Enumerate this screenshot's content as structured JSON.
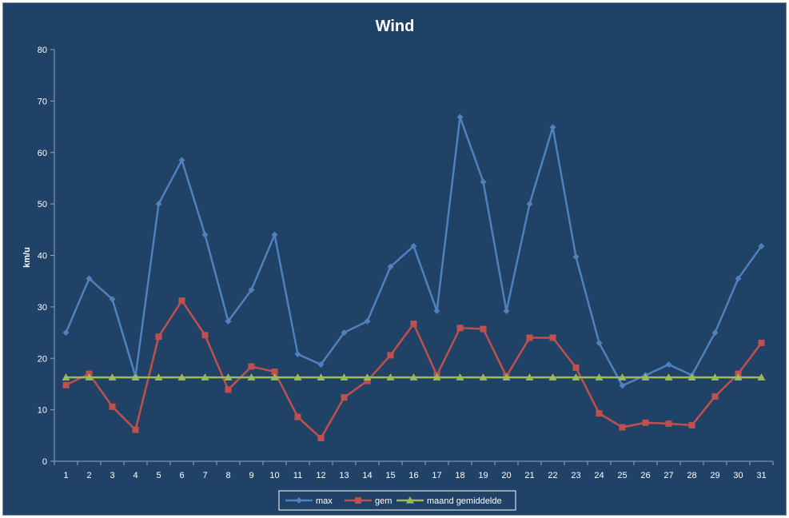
{
  "chart_data": {
    "type": "line",
    "title": "Wind",
    "xlabel": "",
    "ylabel": "km/u",
    "ylim": [
      0,
      80
    ],
    "yticks": [
      0,
      10,
      20,
      30,
      40,
      50,
      60,
      70,
      80
    ],
    "categories": [
      "1",
      "2",
      "3",
      "4",
      "5",
      "6",
      "7",
      "8",
      "9",
      "10",
      "11",
      "12",
      "13",
      "14",
      "15",
      "16",
      "17",
      "18",
      "19",
      "20",
      "21",
      "22",
      "23",
      "24",
      "25",
      "26",
      "27",
      "28",
      "29",
      "30",
      "31"
    ],
    "grid": false,
    "legend_position": "bottom",
    "series": [
      {
        "name": "max",
        "color": "#4f81bd",
        "marker": "diamond",
        "values": [
          25,
          35.5,
          31.5,
          16.5,
          50,
          58.5,
          44,
          27.2,
          33.3,
          44,
          20.8,
          18.8,
          25,
          27.2,
          37.8,
          41.8,
          29.2,
          66.9,
          54.3,
          29.2,
          50,
          64.9,
          39.7,
          23,
          14.7,
          16.7,
          18.8,
          16.7,
          25,
          35.5,
          41.8
        ]
      },
      {
        "name": "gem",
        "color": "#c0504d",
        "marker": "square",
        "values": [
          14.8,
          17,
          10.6,
          6.1,
          24.2,
          31.2,
          24.5,
          13.9,
          18.4,
          17.4,
          8.6,
          4.5,
          12.4,
          15.6,
          20.6,
          26.7,
          16.7,
          25.9,
          25.7,
          16.5,
          24,
          24,
          18.2,
          9.3,
          6.6,
          7.5,
          7.3,
          7,
          12.6,
          17,
          23
        ]
      },
      {
        "name": "maand gemiddelde",
        "color": "#9bbb59",
        "marker": "triangle",
        "values": [
          16.3,
          16.3,
          16.3,
          16.3,
          16.3,
          16.3,
          16.3,
          16.3,
          16.3,
          16.3,
          16.3,
          16.3,
          16.3,
          16.3,
          16.3,
          16.3,
          16.3,
          16.3,
          16.3,
          16.3,
          16.3,
          16.3,
          16.3,
          16.3,
          16.3,
          16.3,
          16.3,
          16.3,
          16.3,
          16.3,
          16.3
        ]
      }
    ]
  },
  "colors": {
    "background": "#1f4266",
    "axis": "#8fa6bf",
    "text": "#ffffff"
  }
}
